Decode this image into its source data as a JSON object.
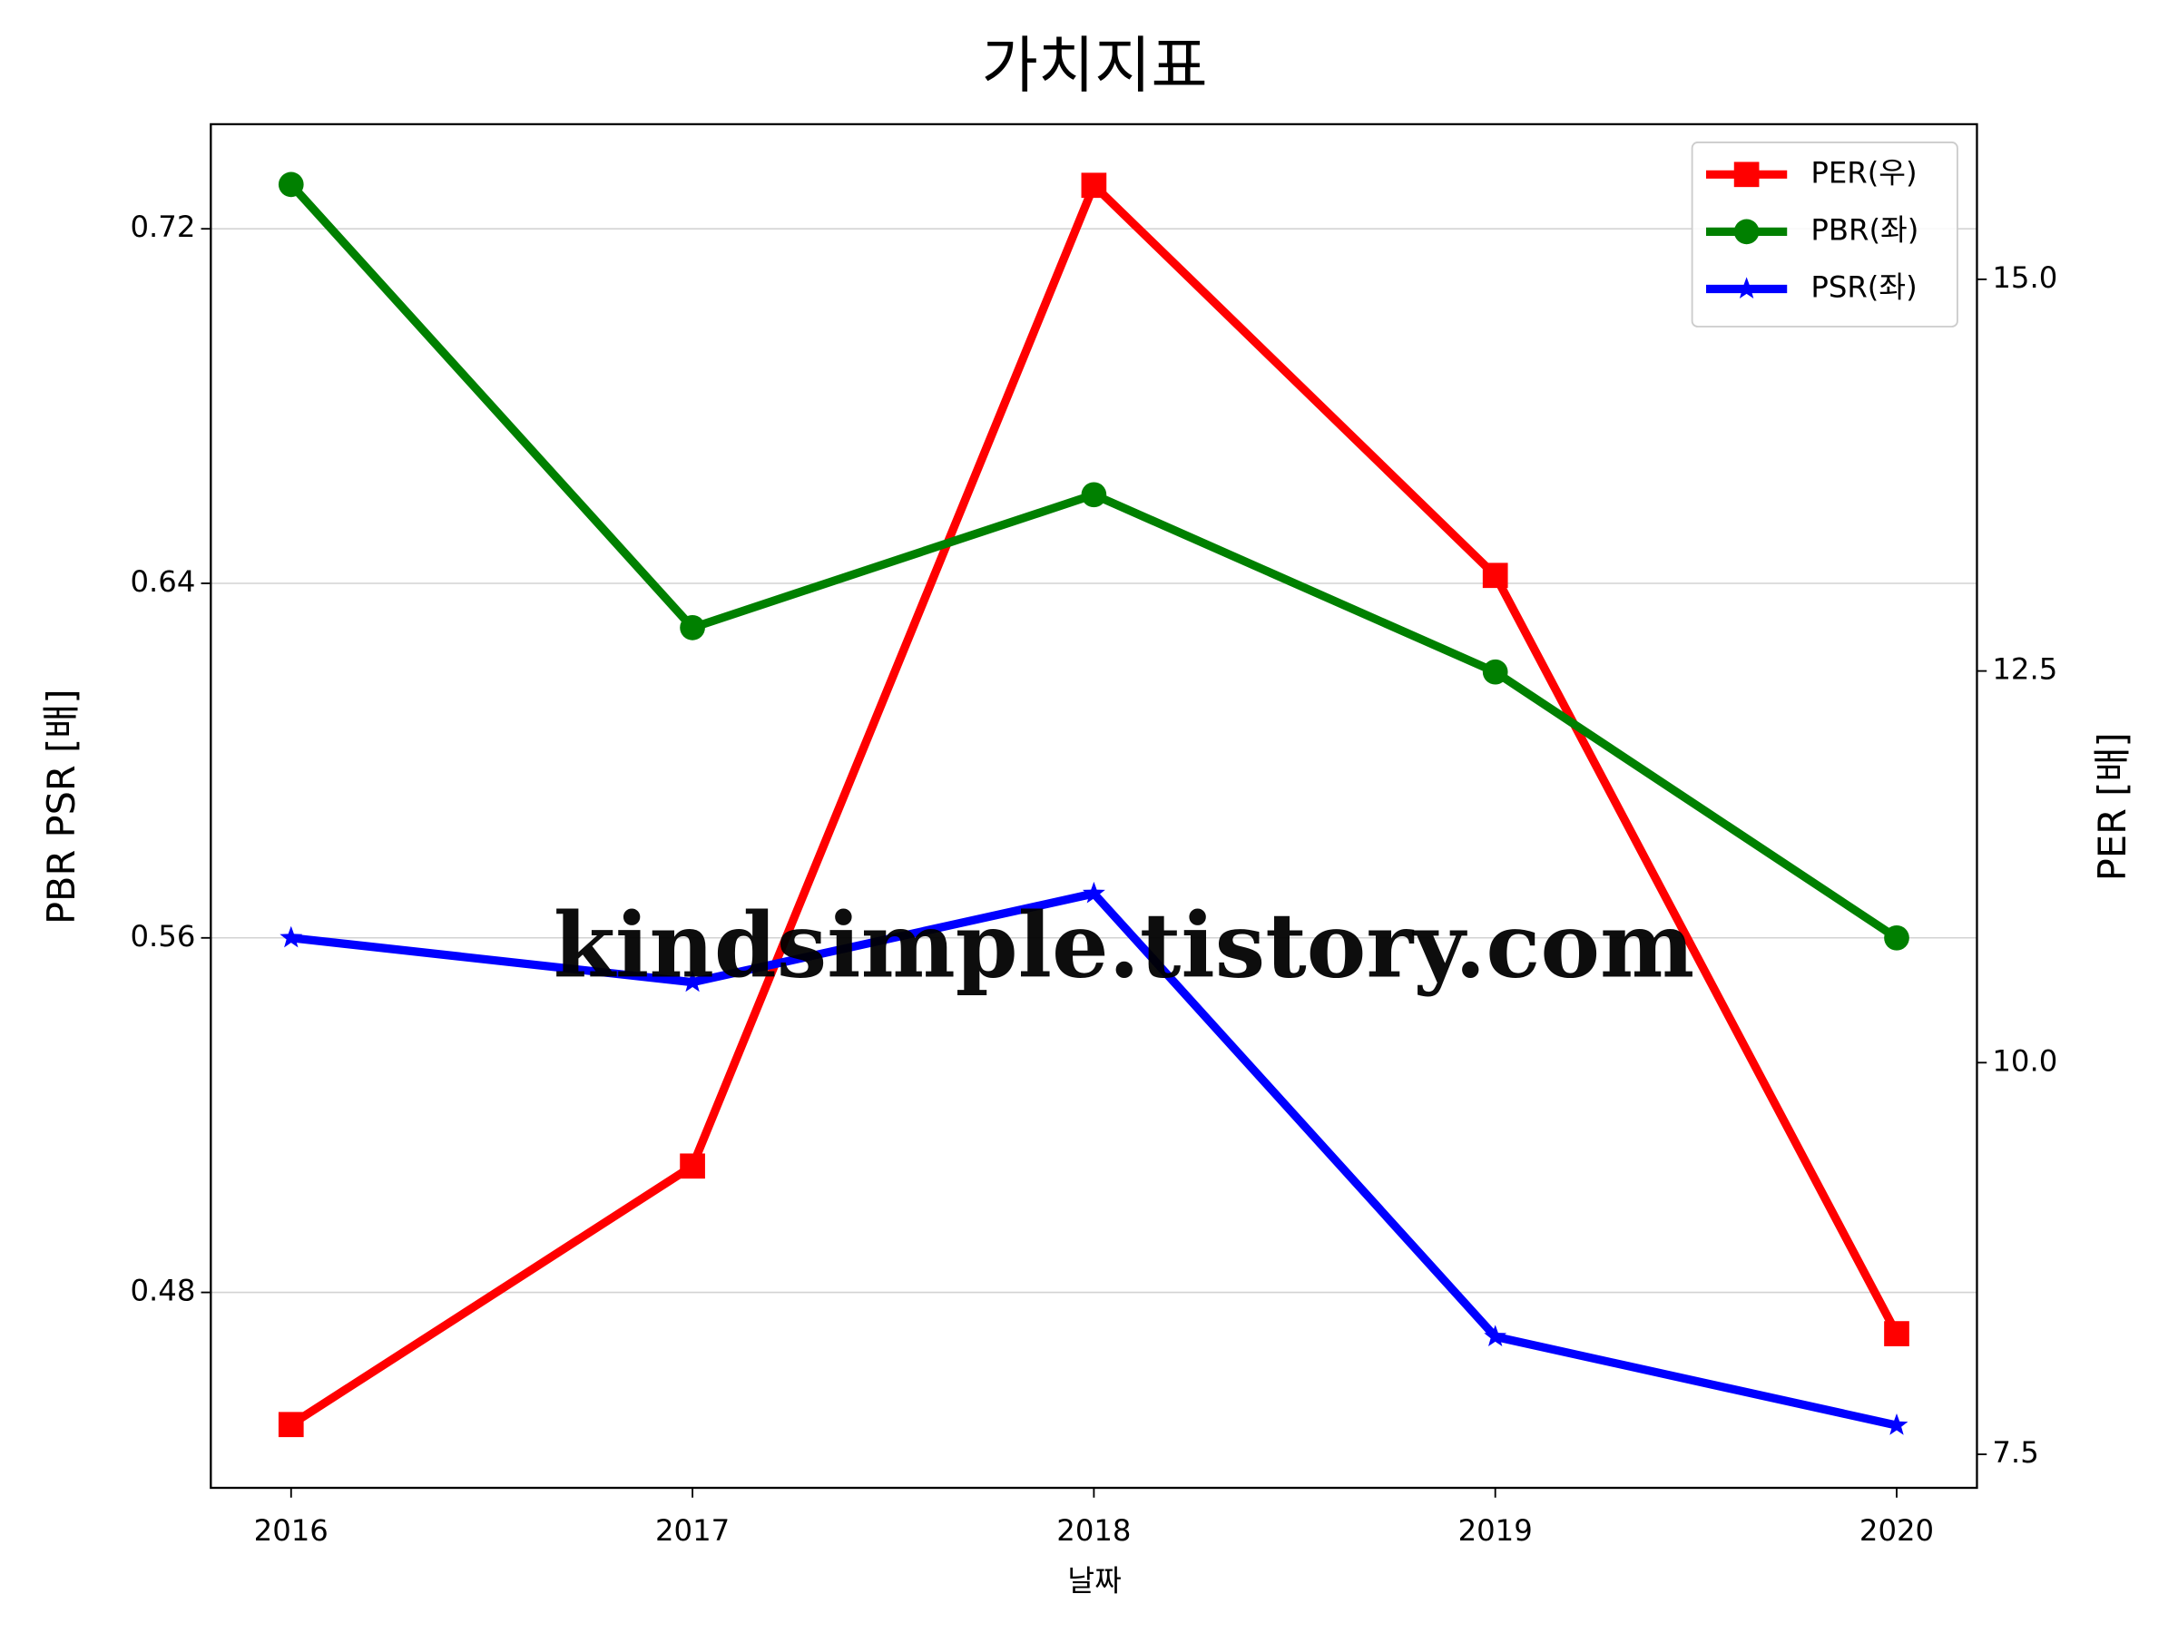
{
  "chart_data": {
    "type": "line",
    "title": "가치지표",
    "xlabel": "날짜",
    "ylabel": "PBR PSR [배]",
    "y2label": "PER [배]",
    "ylabel_color": "#008000",
    "y2label_color": "#ff0000",
    "x": [
      2016,
      2017,
      2018,
      2019,
      2020
    ],
    "xlim": [
      2015.8,
      2020.2
    ],
    "xticks": [
      2016,
      2017,
      2018,
      2019,
      2020
    ],
    "ylim": [
      0.4359,
      0.7436
    ],
    "yticks": [
      0.48,
      0.56,
      0.64,
      0.72
    ],
    "y2lim": [
      7.286,
      15.99
    ],
    "y2ticks": [
      {
        "value": 7.5,
        "label": "7.5"
      },
      {
        "value": 10,
        "label": "10.0"
      },
      {
        "value": 12.5,
        "label": "12.5"
      },
      {
        "value": 15,
        "label": "15.0"
      }
    ],
    "grid": true,
    "legend": "upper right",
    "series": [
      {
        "name": "PER(우)",
        "color": "#ff0000",
        "marker": "square",
        "axis": "y2",
        "values": [
          7.69,
          9.34,
          15.6,
          13.11,
          8.27
        ]
      },
      {
        "name": "PBR(좌)",
        "color": "#008000",
        "marker": "circle",
        "values": [
          0.73,
          0.63,
          0.66,
          0.62,
          0.56
        ]
      },
      {
        "name": "PSR(좌)",
        "color": "#0000ff",
        "marker": "star",
        "values": [
          0.56,
          0.55,
          0.57,
          0.47,
          0.45
        ]
      }
    ],
    "watermark": "kindsimple.tistory.com"
  }
}
